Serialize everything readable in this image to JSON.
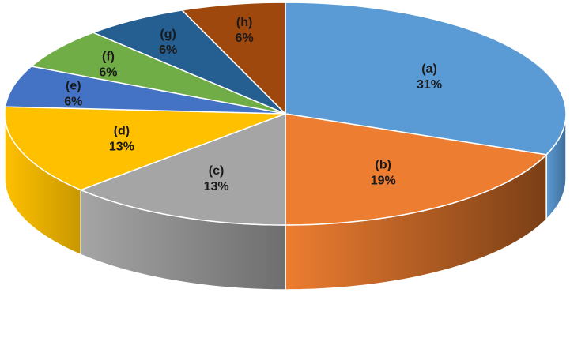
{
  "chart_data": {
    "type": "pie",
    "style": "3d",
    "legend": "none",
    "slices": [
      {
        "label": "(a)",
        "value": 31,
        "value_label": "31%",
        "color": "#5B9BD5",
        "side_color": "#3F6E99"
      },
      {
        "label": "(b)",
        "value": 19,
        "value_label": "19%",
        "color": "#ED7D31",
        "side_color": "#7A3F16"
      },
      {
        "label": "(c)",
        "value": 13,
        "value_label": "13%",
        "color": "#A5A5A5",
        "side_color": "#6E6E6E"
      },
      {
        "label": "(d)",
        "value": 13,
        "value_label": "13%",
        "color": "#FFC000",
        "side_color": "#C89800"
      },
      {
        "label": "(e)",
        "value": 6,
        "value_label": "6%",
        "color": "#4472C4",
        "side_color": "#2E5190"
      },
      {
        "label": "(f)",
        "value": 6,
        "value_label": "6%",
        "color": "#70AD47",
        "side_color": "#4E7A31"
      },
      {
        "label": "(g)",
        "value": 6,
        "value_label": "6%",
        "color": "#255E91",
        "side_color": "#16395A"
      },
      {
        "label": "(h)",
        "value": 6,
        "value_label": "6%",
        "color": "#9E480E",
        "side_color": "#5E2A08"
      }
    ]
  }
}
